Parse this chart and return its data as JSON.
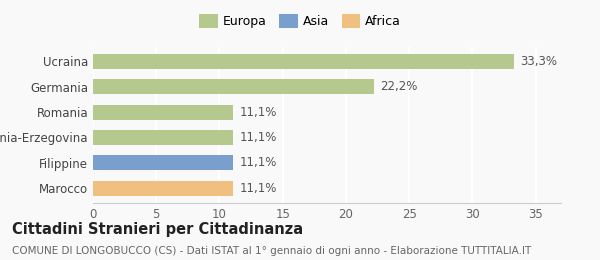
{
  "categories": [
    "Marocco",
    "Filippine",
    "Bosnia-Erzegovina",
    "Romania",
    "Germania",
    "Ucraina"
  ],
  "values": [
    11.1,
    11.1,
    11.1,
    11.1,
    22.2,
    33.3
  ],
  "labels": [
    "11,1%",
    "11,1%",
    "11,1%",
    "11,1%",
    "22,2%",
    "33,3%"
  ],
  "bar_colors": [
    "#f0c080",
    "#7b9fcc",
    "#b5c98e",
    "#b5c98e",
    "#b5c98e",
    "#b5c98e"
  ],
  "legend_labels": [
    "Europa",
    "Asia",
    "Africa"
  ],
  "legend_colors": [
    "#b5c98e",
    "#7b9fcc",
    "#f0c080"
  ],
  "title": "Cittadini Stranieri per Cittadinanza",
  "subtitle": "COMUNE DI LONGOBUCCO (CS) - Dati ISTAT al 1° gennaio di ogni anno - Elaborazione TUTTITALIA.IT",
  "xlim": [
    0,
    37
  ],
  "xticks": [
    0,
    5,
    10,
    15,
    20,
    25,
    30,
    35
  ],
  "bg_color": "#f9f9f9",
  "bar_height": 0.6,
  "label_fontsize": 8.5,
  "title_fontsize": 10.5,
  "subtitle_fontsize": 7.5,
  "ytick_fontsize": 8.5,
  "xtick_fontsize": 8.5
}
